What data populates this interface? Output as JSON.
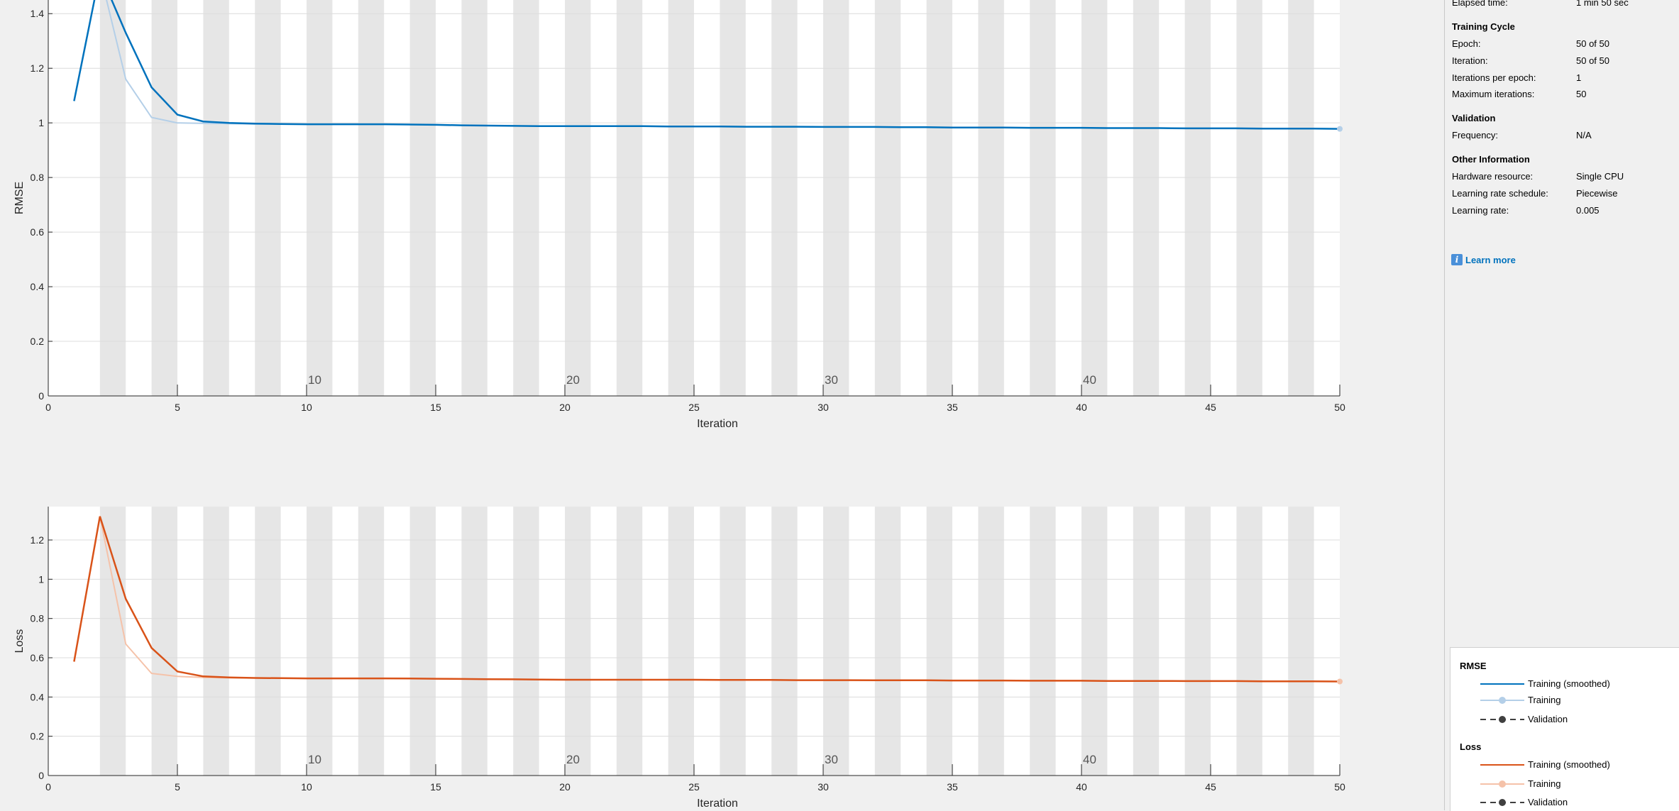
{
  "info": {
    "elapsed": {
      "label": "Elapsed time:",
      "value": "1 min 50 sec"
    },
    "training_cycle": {
      "title": "Training Cycle",
      "rows": [
        {
          "label": "Epoch:",
          "value": "50 of 50"
        },
        {
          "label": "Iteration:",
          "value": "50 of 50"
        },
        {
          "label": "Iterations per epoch:",
          "value": "1"
        },
        {
          "label": "Maximum iterations:",
          "value": "50"
        }
      ]
    },
    "validation": {
      "title": "Validation",
      "rows": [
        {
          "label": "Frequency:",
          "value": "N/A"
        }
      ]
    },
    "other": {
      "title": "Other Information",
      "rows": [
        {
          "label": "Hardware resource:",
          "value": "Single CPU"
        },
        {
          "label": "Learning rate schedule:",
          "value": "Piecewise"
        },
        {
          "label": "Learning rate:",
          "value": "0.005"
        }
      ]
    },
    "learn_more": "Learn more"
  },
  "legend": {
    "rmse": {
      "title": "RMSE",
      "items": [
        "Training (smoothed)",
        "Training",
        "Validation"
      ]
    },
    "loss": {
      "title": "Loss",
      "items": [
        "Training (smoothed)",
        "Training",
        "Validation"
      ]
    }
  },
  "colors": {
    "rmse_smoothed": "#0072bd",
    "rmse_training": "#b4cfe8",
    "loss_smoothed": "#d95319",
    "loss_training": "#f5c2a9",
    "validation": "#404040",
    "epoch_band": "#e6e6e6",
    "grid": "#dcdcdc"
  },
  "chart_data": [
    {
      "type": "line",
      "ylabel": "RMSE",
      "xlabel": "Iteration",
      "xlim": [
        0,
        50
      ],
      "ylim": [
        0,
        1.45
      ],
      "xticks": [
        0,
        5,
        10,
        15,
        20,
        25,
        30,
        35,
        40,
        45,
        50
      ],
      "yticks": [
        0,
        0.2,
        0.4,
        0.6,
        0.8,
        1,
        1.2,
        1.4
      ],
      "epoch_labels": [
        10,
        20,
        30,
        40
      ],
      "grid": true,
      "series": [
        {
          "name": "Training (smoothed)",
          "x": [
            1,
            2,
            3,
            4,
            5,
            6,
            7,
            8,
            9,
            10,
            11,
            12,
            13,
            14,
            15,
            16,
            17,
            18,
            19,
            20,
            21,
            22,
            23,
            24,
            25,
            26,
            27,
            28,
            29,
            30,
            31,
            32,
            33,
            34,
            35,
            36,
            37,
            38,
            39,
            40,
            41,
            42,
            43,
            44,
            45,
            46,
            47,
            48,
            49,
            50
          ],
          "values": [
            1.08,
            1.55,
            1.33,
            1.13,
            1.03,
            1.005,
            1.0,
            0.997,
            0.996,
            0.995,
            0.995,
            0.995,
            0.995,
            0.994,
            0.993,
            0.991,
            0.99,
            0.989,
            0.988,
            0.988,
            0.988,
            0.988,
            0.988,
            0.987,
            0.987,
            0.987,
            0.986,
            0.986,
            0.986,
            0.985,
            0.985,
            0.985,
            0.984,
            0.984,
            0.983,
            0.983,
            0.983,
            0.982,
            0.982,
            0.982,
            0.981,
            0.981,
            0.981,
            0.98,
            0.98,
            0.98,
            0.979,
            0.979,
            0.979,
            0.978
          ]
        },
        {
          "name": "Training",
          "x": [
            1,
            2,
            3,
            4,
            5,
            6,
            7,
            8,
            9,
            10,
            11,
            12,
            13,
            14,
            15,
            16,
            17,
            18,
            19,
            20,
            21,
            22,
            23,
            24,
            25,
            26,
            27,
            28,
            29,
            30,
            31,
            32,
            33,
            34,
            35,
            36,
            37,
            38,
            39,
            40,
            41,
            42,
            43,
            44,
            45,
            46,
            47,
            48,
            49,
            50
          ],
          "values": [
            1.08,
            1.55,
            1.16,
            1.02,
            1.0,
            0.998,
            0.997,
            0.996,
            0.995,
            0.995,
            0.995,
            0.995,
            0.995,
            0.994,
            0.993,
            0.991,
            0.99,
            0.989,
            0.988,
            0.988,
            0.988,
            0.988,
            0.988,
            0.987,
            0.987,
            0.987,
            0.986,
            0.986,
            0.986,
            0.985,
            0.985,
            0.985,
            0.984,
            0.984,
            0.983,
            0.983,
            0.983,
            0.982,
            0.982,
            0.982,
            0.981,
            0.981,
            0.981,
            0.98,
            0.98,
            0.98,
            0.979,
            0.979,
            0.979,
            0.978
          ]
        }
      ]
    },
    {
      "type": "line",
      "ylabel": "Loss",
      "xlabel": "Iteration",
      "xlim": [
        0,
        50
      ],
      "ylim": [
        0,
        1.37
      ],
      "xticks": [
        0,
        5,
        10,
        15,
        20,
        25,
        30,
        35,
        40,
        45,
        50
      ],
      "yticks": [
        0,
        0.2,
        0.4,
        0.6,
        0.8,
        1,
        1.2
      ],
      "epoch_labels": [
        10,
        20,
        30,
        40
      ],
      "grid": true,
      "series": [
        {
          "name": "Training (smoothed)",
          "x": [
            1,
            2,
            3,
            4,
            5,
            6,
            7,
            8,
            9,
            10,
            11,
            12,
            13,
            14,
            15,
            16,
            17,
            18,
            19,
            20,
            21,
            22,
            23,
            24,
            25,
            26,
            27,
            28,
            29,
            30,
            31,
            32,
            33,
            34,
            35,
            36,
            37,
            38,
            39,
            40,
            41,
            42,
            43,
            44,
            45,
            46,
            47,
            48,
            49,
            50
          ],
          "values": [
            0.58,
            1.32,
            0.9,
            0.65,
            0.53,
            0.505,
            0.5,
            0.497,
            0.496,
            0.495,
            0.495,
            0.495,
            0.495,
            0.494,
            0.493,
            0.492,
            0.491,
            0.49,
            0.489,
            0.488,
            0.488,
            0.488,
            0.488,
            0.488,
            0.488,
            0.487,
            0.487,
            0.487,
            0.486,
            0.486,
            0.486,
            0.485,
            0.485,
            0.485,
            0.484,
            0.484,
            0.484,
            0.483,
            0.483,
            0.483,
            0.482,
            0.482,
            0.482,
            0.481,
            0.481,
            0.481,
            0.48,
            0.48,
            0.48,
            0.479
          ]
        },
        {
          "name": "Training",
          "x": [
            1,
            2,
            3,
            4,
            5,
            6,
            7,
            8,
            9,
            10,
            11,
            12,
            13,
            14,
            15,
            16,
            17,
            18,
            19,
            20,
            21,
            22,
            23,
            24,
            25,
            26,
            27,
            28,
            29,
            30,
            31,
            32,
            33,
            34,
            35,
            36,
            37,
            38,
            39,
            40,
            41,
            42,
            43,
            44,
            45,
            46,
            47,
            48,
            49,
            50
          ],
          "values": [
            0.58,
            1.32,
            0.67,
            0.52,
            0.505,
            0.5,
            0.498,
            0.497,
            0.496,
            0.495,
            0.495,
            0.495,
            0.495,
            0.494,
            0.493,
            0.492,
            0.491,
            0.49,
            0.489,
            0.488,
            0.488,
            0.488,
            0.488,
            0.488,
            0.488,
            0.487,
            0.487,
            0.487,
            0.486,
            0.486,
            0.486,
            0.485,
            0.485,
            0.485,
            0.484,
            0.484,
            0.484,
            0.483,
            0.483,
            0.483,
            0.482,
            0.482,
            0.482,
            0.481,
            0.481,
            0.481,
            0.48,
            0.48,
            0.48,
            0.479
          ]
        }
      ]
    }
  ]
}
